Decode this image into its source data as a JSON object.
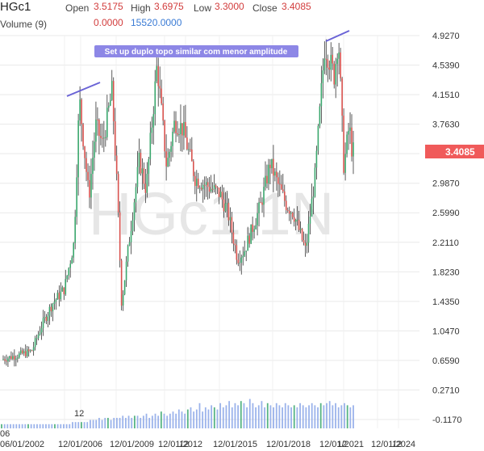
{
  "header": {
    "symbol": "HGc1",
    "open_label": "Open",
    "open_value": "3.5175",
    "high_label": "High",
    "high_value": "3.6975",
    "low_label": "Low",
    "low_value": "3.3000",
    "close_label": "Close",
    "close_value": "3.4085",
    "volume_label": "Volume (9)",
    "volume_value1": "0.0000",
    "volume_value2": "15520.0000"
  },
  "watermark": "HGc1,1N",
  "annotation": "Set up duplo topo similar com menor amplitude",
  "last_price_label": "3.4085",
  "colors": {
    "up": "#3aa76d",
    "down": "#d9534f",
    "annotation_bg": "#8d87e6",
    "trendline": "#6a63d6",
    "price_tag": "#f05a5a",
    "volume": "#8aa6e8"
  },
  "chart_data": {
    "type": "candlestick",
    "title": "HGc1",
    "x_tick_labels": [
      "06",
      "06/01/2002",
      "12",
      "12/01/2006",
      "12/01/2009",
      "12",
      "12/01/2012",
      "12/01/2015",
      "12/01/2018",
      "12",
      "12/01/2021",
      "12",
      "12/01/2024"
    ],
    "y_tick_labels": [
      "4.9270",
      "4.5390",
      "4.1510",
      "3.7630",
      "3.3750",
      "2.9870",
      "2.5990",
      "2.2110",
      "1.8230",
      "1.4350",
      "1.0470",
      "0.6590",
      "0.2710",
      "-0.1170"
    ],
    "ylim": [
      -0.117,
      4.927
    ],
    "series": [
      {
        "name": "HGc1",
        "points": [
          [
            "2001-06",
            0.66
          ],
          [
            "2002-06",
            0.72
          ],
          [
            "2003-06",
            0.78
          ],
          [
            "2004-01",
            1.1
          ],
          [
            "2004-09",
            1.4
          ],
          [
            "2005-06",
            1.6
          ],
          [
            "2006-01",
            2.2
          ],
          [
            "2006-05",
            4.1
          ],
          [
            "2006-12",
            2.8
          ],
          [
            "2007-05",
            3.75
          ],
          [
            "2007-10",
            3.5
          ],
          [
            "2008-05",
            4.2
          ],
          [
            "2008-09",
            2.8
          ],
          [
            "2008-12",
            1.4
          ],
          [
            "2009-06",
            2.3
          ],
          [
            "2010-01",
            3.3
          ],
          [
            "2010-06",
            2.9
          ],
          [
            "2011-02",
            4.55
          ],
          [
            "2011-09",
            3.2
          ],
          [
            "2012-03",
            3.8
          ],
          [
            "2012-09",
            3.7
          ],
          [
            "2013-06",
            3.05
          ],
          [
            "2014-03",
            2.95
          ],
          [
            "2014-12",
            2.85
          ],
          [
            "2015-06",
            2.6
          ],
          [
            "2016-01",
            2.0
          ],
          [
            "2016-06",
            2.1
          ],
          [
            "2017-06",
            2.7
          ],
          [
            "2018-01",
            3.25
          ],
          [
            "2018-06",
            3.0
          ],
          [
            "2019-01",
            2.7
          ],
          [
            "2019-06",
            2.6
          ],
          [
            "2020-03",
            2.1
          ],
          [
            "2020-10",
            3.1
          ],
          [
            "2021-05",
            4.8
          ],
          [
            "2021-12",
            4.4
          ],
          [
            "2022-03",
            4.93
          ],
          [
            "2022-07",
            3.2
          ],
          [
            "2022-11",
            3.75
          ],
          [
            "2023-01",
            3.41
          ]
        ]
      }
    ],
    "volume_series": [
      0.02,
      0.02,
      0.02,
      0.02,
      0.02,
      0.02,
      0.02,
      0.02,
      0.02,
      0.02,
      0.02,
      0.02,
      0.02,
      0.02,
      0.02,
      0.02,
      0.02,
      0.02,
      0.02,
      0.02,
      0.02,
      0.02,
      0.02,
      0.02,
      0.03,
      0.03,
      0.03,
      0.03,
      0.03,
      0.03,
      0.04,
      0.04,
      0.04,
      0.05,
      0.04,
      0.05,
      0.05,
      0.04,
      0.05,
      0.05,
      0.05,
      0.06,
      0.05,
      0.06,
      0.05,
      0.06,
      0.06,
      0.05,
      0.06,
      0.07,
      0.05,
      0.06,
      0.07,
      0.06,
      0.08,
      0.07,
      0.06,
      0.07,
      0.08,
      0.07,
      0.09,
      0.08,
      0.07,
      0.09,
      0.1,
      0.08,
      0.09,
      0.12,
      0.08,
      0.1,
      0.09,
      0.11,
      0.1,
      0.09,
      0.12,
      0.1,
      0.11,
      0.13,
      0.1,
      0.12,
      0.11,
      0.13,
      0.12,
      0.1,
      0.14,
      0.12,
      0.1,
      0.11,
      0.13,
      0.1,
      0.12,
      0.11,
      0.1,
      0.12,
      0.11,
      0.1,
      0.12,
      0.11,
      0.1,
      0.11,
      0.1,
      0.12,
      0.11,
      0.1,
      0.11,
      0.12,
      0.11,
      0.1,
      0.12,
      0.11,
      0.12,
      0.13,
      0.11,
      0.12,
      0.1,
      0.11,
      0.12,
      0.11,
      0.1,
      0.11
    ]
  }
}
